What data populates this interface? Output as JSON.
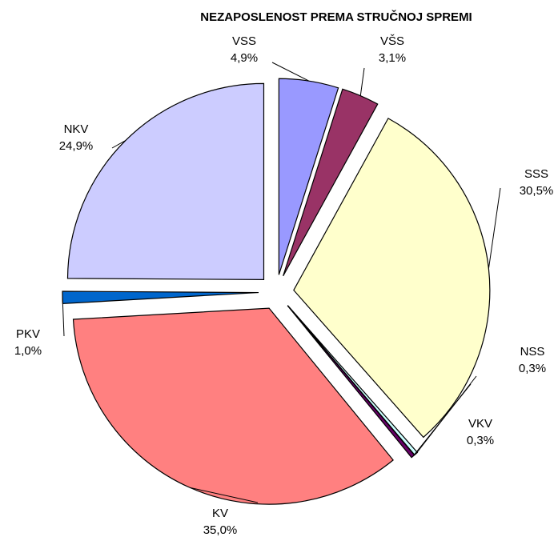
{
  "chart_data": {
    "type": "pie",
    "title": "NEZAPOSLENOST PREMA STRUČNOJ SPREMI",
    "categories": [
      "VSS",
      "VŠS",
      "SSS",
      "NSS",
      "VKV",
      "KV",
      "PKV",
      "NKV"
    ],
    "values": [
      4.9,
      3.1,
      30.5,
      0.3,
      0.3,
      35.0,
      1.0,
      24.9
    ],
    "value_labels": [
      "4,9%",
      "3,1%",
      "30,5%",
      "0,3%",
      "0,3%",
      "35,0%",
      "1,0%",
      "24,9%"
    ],
    "colors": [
      "#9999ff",
      "#993366",
      "#ffffcc",
      "#ccffff",
      "#660066",
      "#ff8080",
      "#0066cc",
      "#ccccff"
    ]
  }
}
